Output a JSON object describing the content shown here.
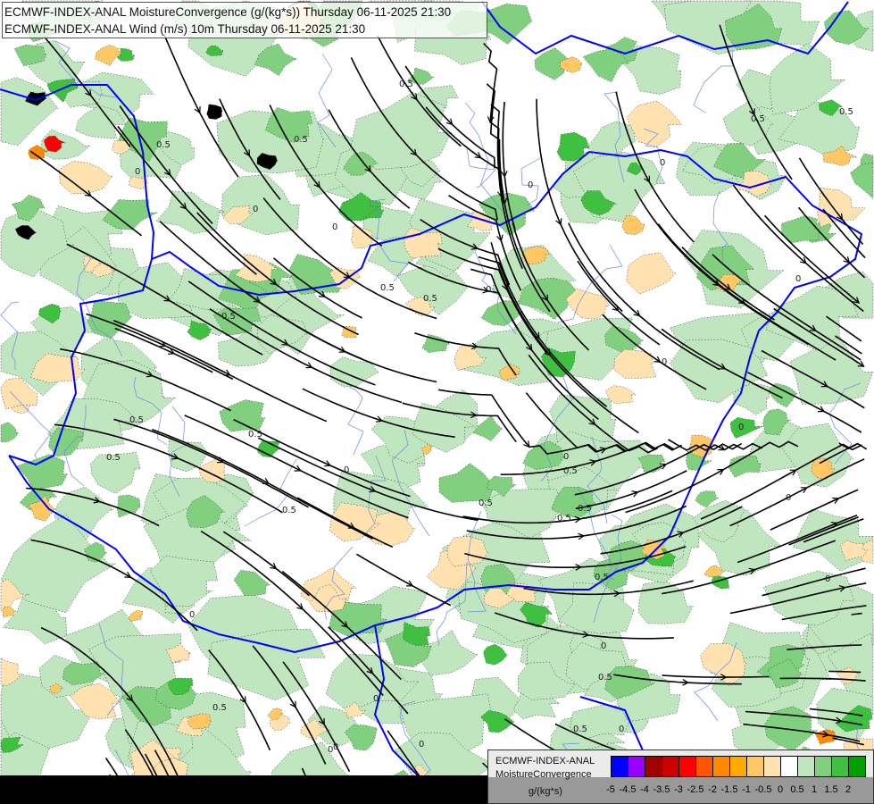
{
  "title": {
    "line1": "ECMWF-INDEX-ANAL MoistureConvergence (g/(kg*s)) Thursday 06-11-2025 21:30",
    "line2": "ECMWF-INDEX-ANAL Wind (m/s) 10m Thursday 06-11-2025 21:30"
  },
  "legend": {
    "model": "ECMWF-INDEX-ANAL",
    "parameter": "MoistureConvergence",
    "unit": "g/(kg*s)",
    "colors": [
      "#0000ff",
      "#9900ff",
      "#a00000",
      "#cc0000",
      "#ff0000",
      "#ff5500",
      "#ff8800",
      "#ffaa00",
      "#ffc864",
      "#ffe2b0",
      "#ffffff",
      "#c0e6c0",
      "#80d080",
      "#40c040",
      "#00a000"
    ],
    "tick_labels": [
      "-5",
      "-4.5",
      "-4",
      "-3.5",
      "-3",
      "-2.5",
      "-2",
      "-1.5",
      "-1",
      "-0.5",
      "0",
      "0.5",
      "1",
      "1.5",
      "2"
    ]
  },
  "map": {
    "contour_labels": [
      "0",
      "0.5"
    ],
    "border_color": "#0000ff",
    "streamline_color": "#000000"
  }
}
